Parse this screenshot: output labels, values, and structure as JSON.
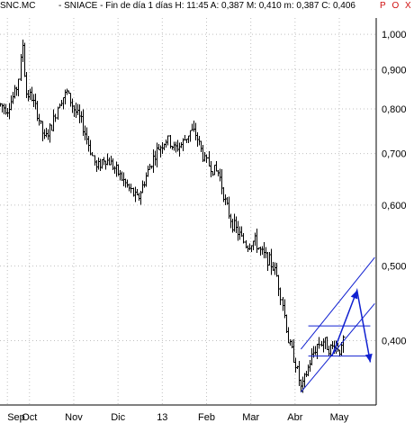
{
  "header": {
    "symbol": "SNC.MC",
    "info": "- SNIACE - Fin de día 1 días H: 11:45 A: 0,387 M: 0,410 m: 0,387 C: 0,406",
    "mode_p": "P",
    "mode_o": "O",
    "mode_x": "X"
  },
  "chart_data": {
    "type": "candlestick",
    "title": "SNC.MC - SNIACE - Fin de día 1 días",
    "ylabel": "",
    "xlabel": "",
    "y_scale": "log",
    "ylim": [
      0.33,
      1.05
    ],
    "y_ticks": [
      "1,000",
      "0,900",
      "0,800",
      "0,700",
      "0,600",
      "0,500",
      "0,400"
    ],
    "y_tick_values": [
      1.0,
      0.9,
      0.8,
      0.7,
      0.6,
      0.5,
      0.4
    ],
    "x_ticks": [
      "Sep",
      "Oct",
      "Nov",
      "Dic",
      "13",
      "Feb",
      "Mar",
      "Abr",
      "May"
    ],
    "x_tick_days": [
      0,
      15,
      45,
      75,
      105,
      135,
      165,
      195,
      225
    ],
    "x_range_days": [
      -5,
      250
    ],
    "grid": true,
    "last_quote": {
      "open": 0.387,
      "high": 0.41,
      "low": 0.387,
      "close": 0.406
    },
    "anchors": [
      {
        "d": -5,
        "p": 0.81
      },
      {
        "d": 0,
        "p": 0.8
      },
      {
        "d": 4,
        "p": 0.83
      },
      {
        "d": 7,
        "p": 0.86
      },
      {
        "d": 10,
        "p": 0.97
      },
      {
        "d": 12,
        "p": 0.84
      },
      {
        "d": 16,
        "p": 0.83
      },
      {
        "d": 20,
        "p": 0.79
      },
      {
        "d": 25,
        "p": 0.73
      },
      {
        "d": 30,
        "p": 0.76
      },
      {
        "d": 35,
        "p": 0.82
      },
      {
        "d": 40,
        "p": 0.84
      },
      {
        "d": 45,
        "p": 0.8
      },
      {
        "d": 50,
        "p": 0.77
      },
      {
        "d": 55,
        "p": 0.72
      },
      {
        "d": 60,
        "p": 0.67
      },
      {
        "d": 65,
        "p": 0.69
      },
      {
        "d": 70,
        "p": 0.68
      },
      {
        "d": 75,
        "p": 0.66
      },
      {
        "d": 80,
        "p": 0.64
      },
      {
        "d": 85,
        "p": 0.62
      },
      {
        "d": 88,
        "p": 0.61
      },
      {
        "d": 92,
        "p": 0.64
      },
      {
        "d": 97,
        "p": 0.68
      },
      {
        "d": 102,
        "p": 0.71
      },
      {
        "d": 108,
        "p": 0.73
      },
      {
        "d": 113,
        "p": 0.71
      },
      {
        "d": 118,
        "p": 0.72
      },
      {
        "d": 124,
        "p": 0.75
      },
      {
        "d": 128,
        "p": 0.74
      },
      {
        "d": 133,
        "p": 0.69
      },
      {
        "d": 138,
        "p": 0.67
      },
      {
        "d": 143,
        "p": 0.66
      },
      {
        "d": 148,
        "p": 0.6
      },
      {
        "d": 152,
        "p": 0.57
      },
      {
        "d": 157,
        "p": 0.55
      },
      {
        "d": 162,
        "p": 0.53
      },
      {
        "d": 167,
        "p": 0.54
      },
      {
        "d": 172,
        "p": 0.52
      },
      {
        "d": 177,
        "p": 0.51
      },
      {
        "d": 182,
        "p": 0.49
      },
      {
        "d": 186,
        "p": 0.45
      },
      {
        "d": 190,
        "p": 0.4
      },
      {
        "d": 194,
        "p": 0.38
      },
      {
        "d": 197,
        "p": 0.36
      },
      {
        "d": 199,
        "p": 0.345
      },
      {
        "d": 202,
        "p": 0.36
      },
      {
        "d": 206,
        "p": 0.38
      },
      {
        "d": 210,
        "p": 0.395
      },
      {
        "d": 214,
        "p": 0.4
      },
      {
        "d": 218,
        "p": 0.39
      },
      {
        "d": 222,
        "p": 0.395
      },
      {
        "d": 226,
        "p": 0.387
      },
      {
        "d": 228,
        "p": 0.406
      }
    ],
    "annotations": {
      "channel_lower": [
        {
          "d": 199,
          "p": 0.343
        },
        {
          "d": 249,
          "p": 0.447
        }
      ],
      "channel_upper": [
        {
          "d": 199,
          "p": 0.39
        },
        {
          "d": 249,
          "p": 0.513
        }
      ],
      "resistance": [
        {
          "d": 204,
          "p": 0.418
        },
        {
          "d": 246,
          "p": 0.418
        }
      ],
      "support": [
        {
          "d": 204,
          "p": 0.382
        },
        {
          "d": 246,
          "p": 0.382
        }
      ],
      "target_arrow": [
        {
          "d": 220,
          "p": 0.382
        },
        {
          "d": 237,
          "p": 0.465
        },
        {
          "d": 246,
          "p": 0.375
        }
      ]
    }
  }
}
